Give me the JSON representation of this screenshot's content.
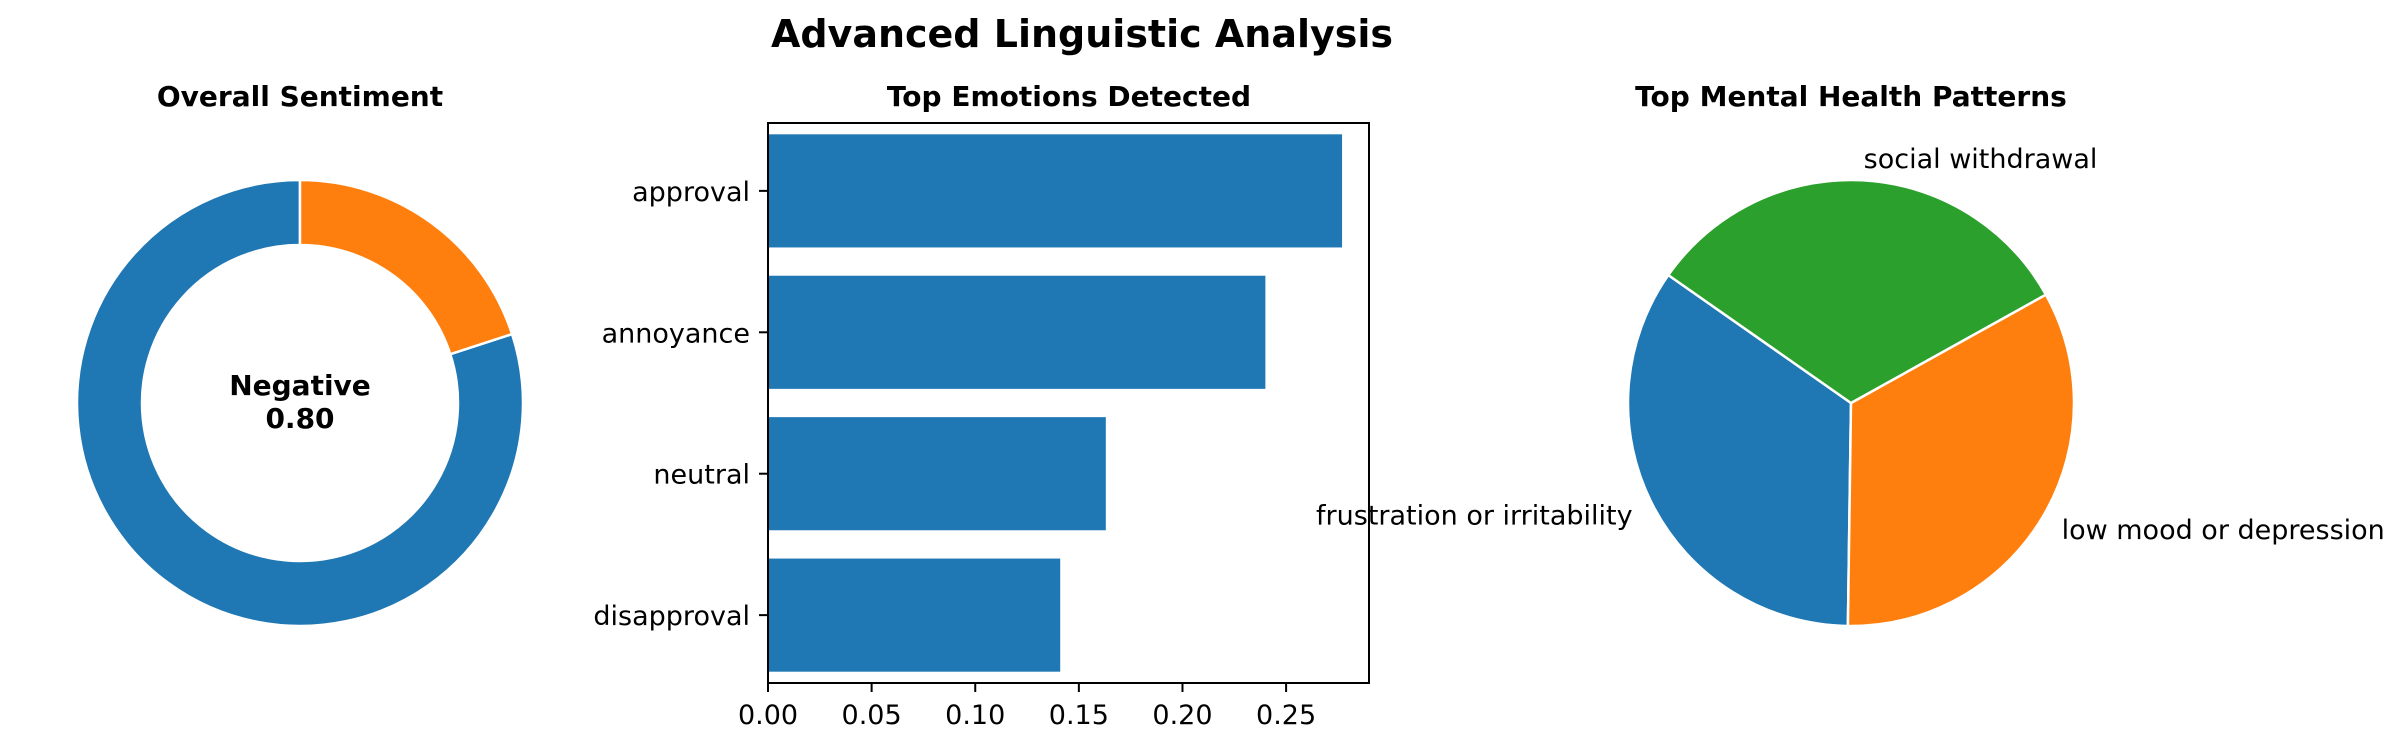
{
  "figure": {
    "title": "Advanced Linguistic Analysis"
  },
  "chart_data": [
    {
      "type": "pie",
      "style": "donut",
      "title": "Overall Sentiment",
      "center_label": [
        "Negative",
        "0.80"
      ],
      "values": [
        0.8,
        0.2
      ],
      "colors": [
        "#1f77b4",
        "#ff7f0e"
      ]
    },
    {
      "type": "bar",
      "orientation": "horizontal",
      "title": "Top Emotions Detected",
      "categories": [
        "approval",
        "annoyance",
        "neutral",
        "disapproval"
      ],
      "values": [
        0.277,
        0.24,
        0.163,
        0.141
      ],
      "xlim": [
        0,
        0.29
      ],
      "xticks": [
        "0.00",
        "0.05",
        "0.10",
        "0.15",
        "0.20",
        "0.25"
      ],
      "color": "#1f77b4"
    },
    {
      "type": "pie",
      "title": "Top Mental Health Patterns",
      "labels": [
        "frustration or irritability",
        "low mood or depression",
        "social withdrawal"
      ],
      "values": [
        0.345,
        0.333,
        0.322
      ],
      "colors": [
        "#1f77b4",
        "#ff7f0e",
        "#2ca02c"
      ]
    }
  ]
}
